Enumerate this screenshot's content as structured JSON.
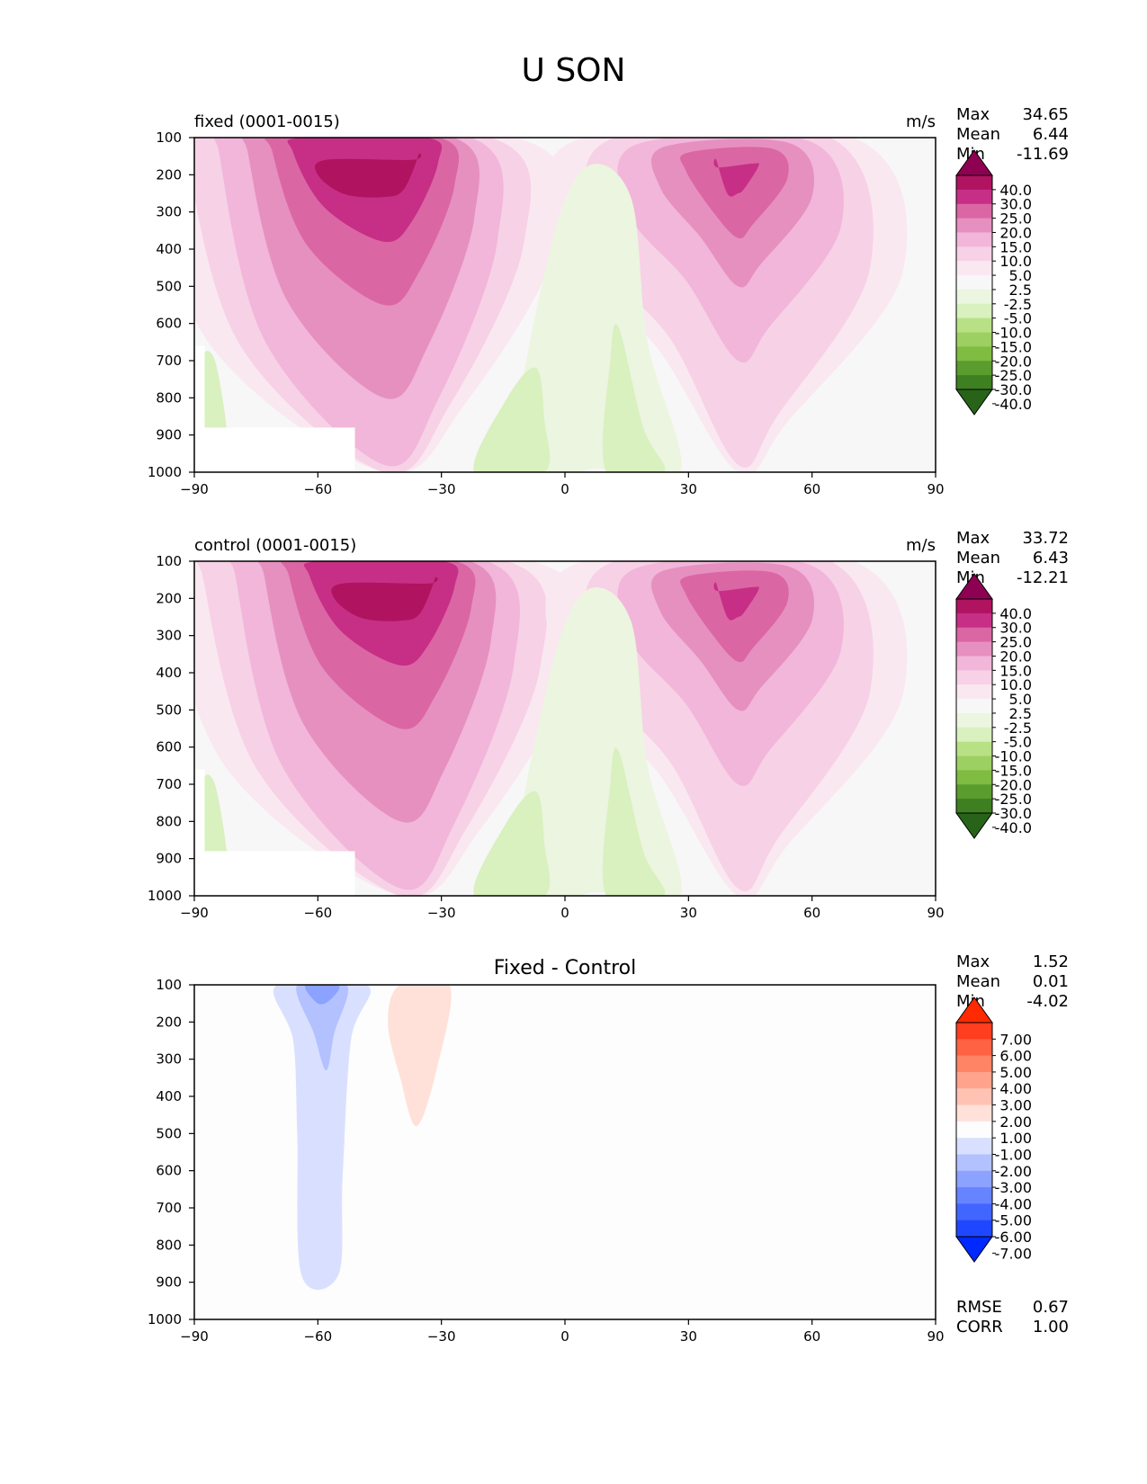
{
  "figure_title": "U SON",
  "chart_data": [
    {
      "type": "contour",
      "title_left": "fixed (0001-0015)",
      "title_right": "m/s",
      "x_ticks": [
        "−90",
        "−60",
        "−30",
        "0",
        "30",
        "60",
        "90"
      ],
      "y_ticks": [
        "100",
        "200",
        "300",
        "400",
        "500",
        "600",
        "700",
        "800",
        "900",
        "1000"
      ],
      "xlim": [
        -90,
        90
      ],
      "ylim": [
        1000,
        100
      ],
      "stats": [
        {
          "label": "Max",
          "value": "34.65"
        },
        {
          "label": "Mean",
          "value": "6.44"
        },
        {
          "label": "Min",
          "value": "-11.69"
        }
      ],
      "colorbar": {
        "labels": [
          "40.0",
          "30.0",
          "25.0",
          "20.0",
          "15.0",
          "10.0",
          "5.0",
          "2.5",
          "-2.5",
          "-5.0",
          "-10.0",
          "-15.0",
          "-20.0",
          "-25.0",
          "-30.0",
          "-40.0"
        ],
        "colors": [
          "#8e0152",
          "#b0135f",
          "#c62f85",
          "#db66a4",
          "#e690c0",
          "#f1b6da",
          "#f7d1e6",
          "#fae8f1",
          "#f7f7f7",
          "#ebf5e0",
          "#d9f0bf",
          "#b8e186",
          "#9dd062",
          "#7fbc41",
          "#5a9c2d",
          "#3e7f21",
          "#276419"
        ]
      },
      "series_sets": {
        "nh_jet_core_lat": 42,
        "nh_jet_core_p": 200,
        "nh_jet_max_band": "30.0",
        "sh_jet_core_lat": -42,
        "sh_jet_core_p": 210,
        "sh_jet_max_band": "30.0"
      }
    },
    {
      "type": "contour",
      "title_left": "control (0001-0015)",
      "title_right": "m/s",
      "x_ticks": [
        "−90",
        "−60",
        "−30",
        "0",
        "30",
        "60",
        "90"
      ],
      "y_ticks": [
        "100",
        "200",
        "300",
        "400",
        "500",
        "600",
        "700",
        "800",
        "900",
        "1000"
      ],
      "xlim": [
        -90,
        90
      ],
      "ylim": [
        1000,
        100
      ],
      "stats": [
        {
          "label": "Max",
          "value": "33.72"
        },
        {
          "label": "Mean",
          "value": "6.43"
        },
        {
          "label": "Min",
          "value": "-12.21"
        }
      ],
      "colorbar": {
        "labels": [
          "40.0",
          "30.0",
          "25.0",
          "20.0",
          "15.0",
          "10.0",
          "5.0",
          "2.5",
          "-2.5",
          "-5.0",
          "-10.0",
          "-15.0",
          "-20.0",
          "-25.0",
          "-30.0",
          "-40.0"
        ],
        "colors": [
          "#8e0152",
          "#b0135f",
          "#c62f85",
          "#db66a4",
          "#e690c0",
          "#f1b6da",
          "#f7d1e6",
          "#fae8f1",
          "#f7f7f7",
          "#ebf5e0",
          "#d9f0bf",
          "#b8e186",
          "#9dd062",
          "#7fbc41",
          "#5a9c2d",
          "#3e7f21",
          "#276419"
        ]
      },
      "series_sets": {
        "nh_jet_core_lat": 42,
        "nh_jet_core_p": 200,
        "nh_jet_max_band": "30.0",
        "sh_jet_core_lat": -38,
        "sh_jet_core_p": 210,
        "sh_jet_max_band": "30.0"
      }
    },
    {
      "type": "contour",
      "title_center": "Fixed - Control",
      "x_ticks": [
        "−90",
        "−60",
        "−30",
        "0",
        "30",
        "60",
        "90"
      ],
      "y_ticks": [
        "100",
        "200",
        "300",
        "400",
        "500",
        "600",
        "700",
        "800",
        "900",
        "1000"
      ],
      "xlim": [
        -90,
        90
      ],
      "ylim": [
        1000,
        100
      ],
      "stats": [
        {
          "label": "Max",
          "value": "1.52"
        },
        {
          "label": "Mean",
          "value": "0.01"
        },
        {
          "label": "Min",
          "value": "-4.02"
        }
      ],
      "colorbar": {
        "labels": [
          "7.00",
          "6.00",
          "5.00",
          "4.00",
          "3.00",
          "2.00",
          "1.00",
          "-1.00",
          "-2.00",
          "-3.00",
          "-4.00",
          "-5.00",
          "-6.00",
          "-7.00"
        ],
        "colors": [
          "#ff2a00",
          "#ff3d1f",
          "#ff6242",
          "#ff8466",
          "#ffa38c",
          "#ffc2b3",
          "#ffe1d9",
          "#fdfdfd",
          "#d9e0ff",
          "#b3c1ff",
          "#8ca2ff",
          "#6684ff",
          "#4066ff",
          "#1f47ff",
          "#0029ff"
        ]
      },
      "extra_stats": [
        {
          "label": "RMSE",
          "value": "0.67"
        },
        {
          "label": "CORR",
          "value": "1.00"
        }
      ]
    }
  ]
}
